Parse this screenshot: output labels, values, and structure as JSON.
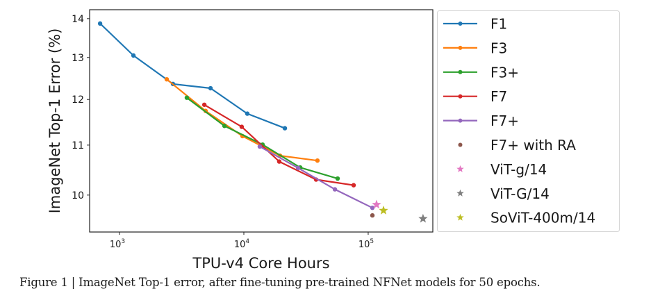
{
  "chart_data": {
    "type": "line",
    "title": "",
    "xlabel": "TPU-v4 Core Hours",
    "ylabel": "ImageNet Top-1 Error (%)",
    "xscale": "log",
    "yscale": "log",
    "xlim": [
      575,
      331000
    ],
    "ylim": [
      9.32,
      14.24
    ],
    "xticks": [
      {
        "value": 1000,
        "base": "10",
        "exp": "3"
      },
      {
        "value": 10000,
        "base": "10",
        "exp": "4"
      },
      {
        "value": 100000,
        "base": "10",
        "exp": "5"
      }
    ],
    "yticks": [
      {
        "value": 10,
        "label": "10"
      },
      {
        "value": 11,
        "label": "11"
      },
      {
        "value": 12,
        "label": "12"
      },
      {
        "value": 13,
        "label": "13"
      },
      {
        "value": 14,
        "label": "14"
      }
    ],
    "grid": false,
    "legend_position": "outside-right",
    "series": [
      {
        "name": "F1",
        "color": "#1f77b4",
        "style": "line-marker",
        "x": [
          698,
          1294,
          2692,
          5397,
          10660,
          21380
        ],
        "y": [
          13.87,
          13.05,
          12.36,
          12.26,
          11.68,
          11.36
        ]
      },
      {
        "name": "F3",
        "color": "#ff7f0e",
        "style": "line-marker",
        "x": [
          2400,
          4930,
          9750,
          19540,
          39070
        ],
        "y": [
          12.47,
          11.74,
          11.19,
          10.78,
          10.68
        ]
      },
      {
        "name": "F3+",
        "color": "#2ca02c",
        "style": "line-marker",
        "x": [
          3480,
          6980,
          14160,
          28400,
          56800
        ],
        "y": [
          12.04,
          11.41,
          11.01,
          10.54,
          10.32
        ]
      },
      {
        "name": "F7",
        "color": "#d62728",
        "style": "line-marker",
        "x": [
          4810,
          9620,
          19270,
          38100,
          76400
        ],
        "y": [
          11.88,
          11.39,
          10.66,
          10.3,
          10.19
        ]
      },
      {
        "name": "F7+",
        "color": "#9467bd",
        "style": "line-marker",
        "x": [
          13430,
          27300,
          54000,
          108100
        ],
        "y": [
          10.97,
          10.53,
          10.11,
          9.76
        ]
      },
      {
        "name": "F7+ with RA",
        "color": "#8c564b",
        "style": "dot",
        "x": [
          108100
        ],
        "y": [
          9.62
        ]
      },
      {
        "name": "ViT-g/14",
        "color": "#e377c2",
        "style": "star",
        "x": [
          116700
        ],
        "y": [
          9.82
        ]
      },
      {
        "name": "ViT-G/14",
        "color": "#7f7f7f",
        "style": "star",
        "x": [
          276000
        ],
        "y": [
          9.56
        ]
      },
      {
        "name": "SoViT-400m/14",
        "color": "#bcbd22",
        "style": "star",
        "x": [
          132800
        ],
        "y": [
          9.71
        ]
      }
    ]
  },
  "caption": "Figure 1 | ImageNet Top-1 error, after fine-tuning pre-trained NFNet models for 50 epochs."
}
